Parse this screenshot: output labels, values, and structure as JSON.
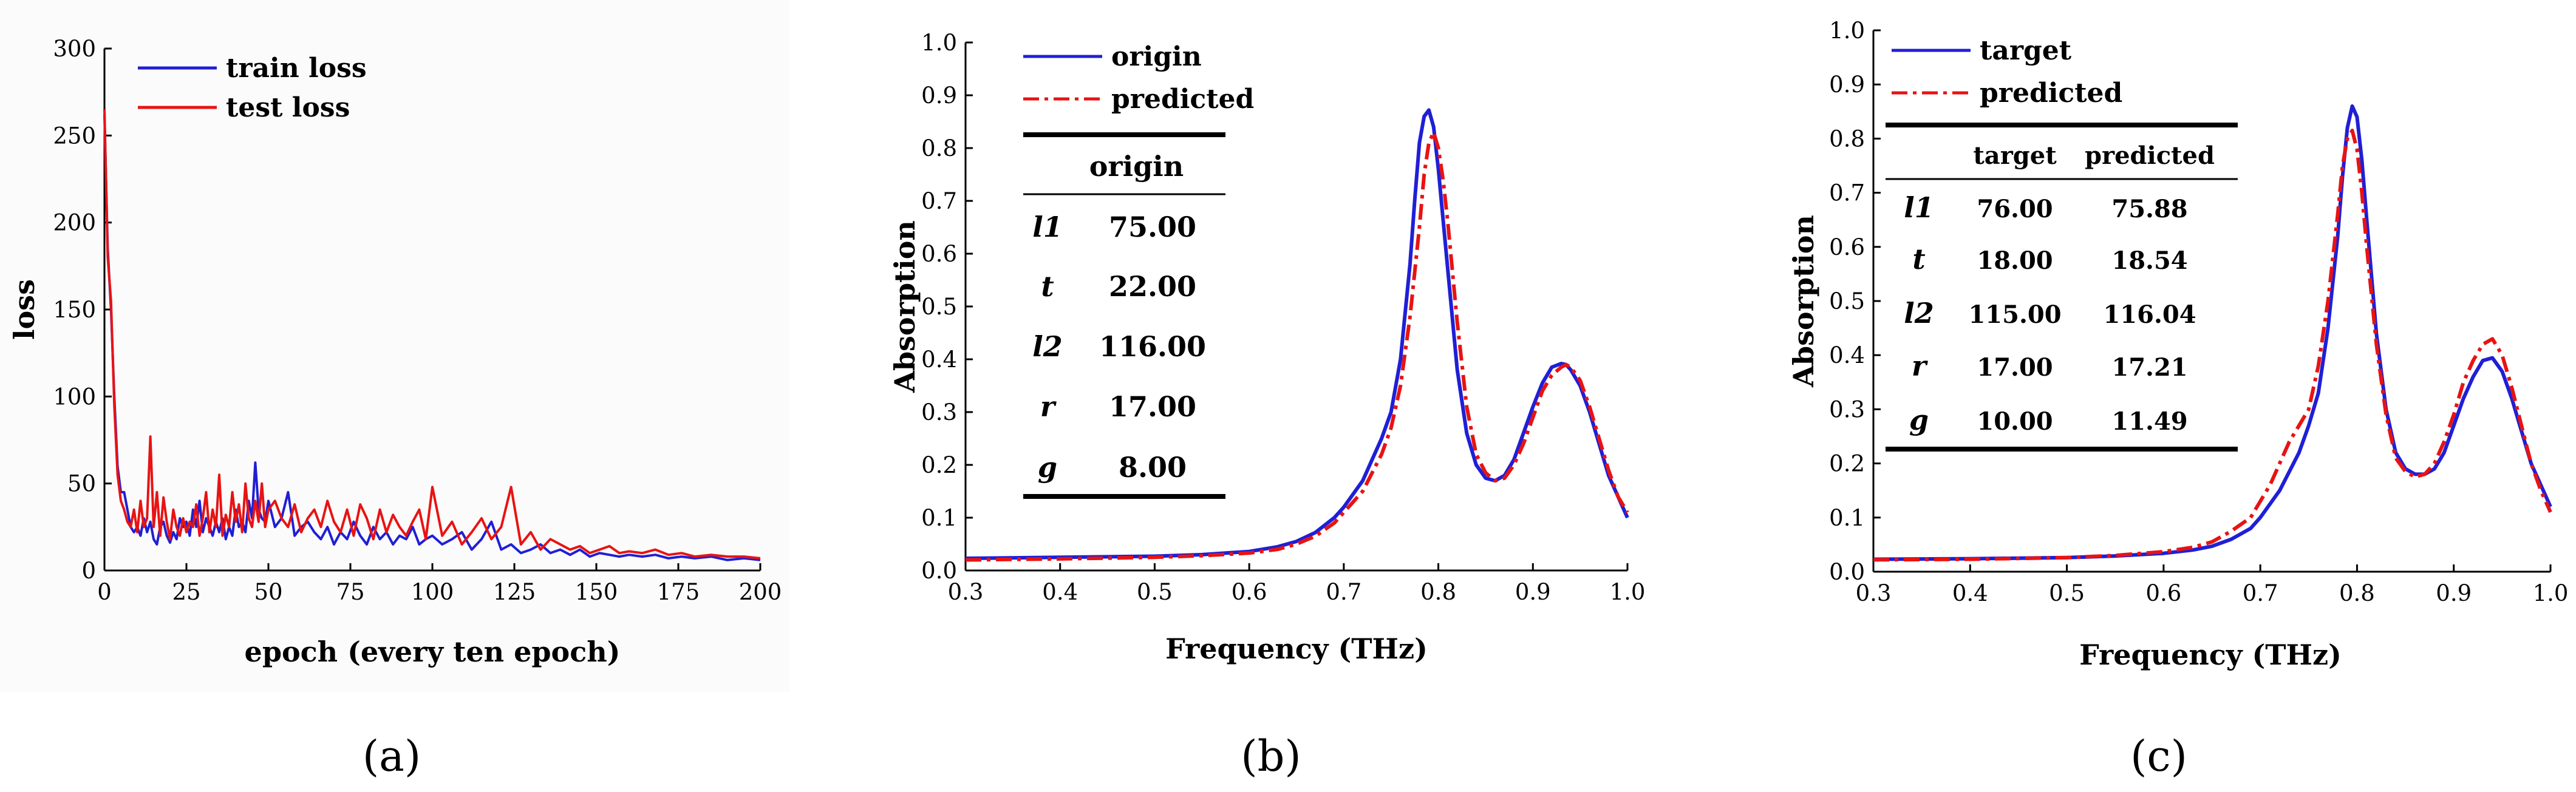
{
  "chart_data": [
    {
      "id": "a",
      "type": "line",
      "xlabel": "epoch (every ten epoch)",
      "ylabel": "loss",
      "xlim": [
        0,
        200
      ],
      "ylim": [
        0,
        300
      ],
      "xticks": [
        0,
        25,
        50,
        75,
        100,
        125,
        150,
        175,
        200
      ],
      "yticks": [
        0,
        50,
        100,
        150,
        200,
        250,
        300
      ],
      "xtick_labels": [
        "0",
        "25",
        "50",
        "75",
        "100",
        "125",
        "150",
        "175",
        "200"
      ],
      "ytick_labels": [
        "0",
        "50",
        "100",
        "150",
        "200",
        "250",
        "300"
      ],
      "legend_position": "top-left",
      "series": [
        {
          "name": "train loss",
          "color": "#1f1fd6",
          "x": [
            0,
            1,
            2,
            3,
            4,
            5,
            6,
            7,
            8,
            9,
            10,
            11,
            12,
            13,
            14,
            15,
            16,
            17,
            18,
            19,
            20,
            21,
            22,
            23,
            24,
            25,
            26,
            27,
            28,
            29,
            30,
            31,
            32,
            33,
            34,
            35,
            36,
            37,
            38,
            39,
            40,
            41,
            42,
            43,
            44,
            45,
            46,
            47,
            48,
            49,
            50,
            52,
            54,
            56,
            58,
            60,
            62,
            64,
            66,
            68,
            70,
            72,
            74,
            76,
            78,
            80,
            82,
            84,
            86,
            88,
            90,
            92,
            94,
            96,
            98,
            100,
            103,
            106,
            109,
            112,
            115,
            118,
            121,
            124,
            127,
            130,
            133,
            136,
            139,
            142,
            145,
            148,
            151,
            154,
            157,
            160,
            164,
            168,
            172,
            176,
            180,
            185,
            190,
            195,
            200
          ],
          "y": [
            262,
            185,
            150,
            100,
            60,
            45,
            45,
            35,
            25,
            22,
            25,
            20,
            30,
            22,
            28,
            18,
            15,
            25,
            28,
            20,
            16,
            22,
            18,
            30,
            25,
            28,
            20,
            35,
            25,
            40,
            22,
            30,
            25,
            20,
            28,
            22,
            30,
            18,
            25,
            20,
            35,
            25,
            28,
            22,
            40,
            30,
            62,
            35,
            30,
            28,
            40,
            25,
            30,
            45,
            20,
            25,
            28,
            22,
            18,
            25,
            15,
            22,
            18,
            28,
            20,
            15,
            25,
            18,
            22,
            15,
            20,
            18,
            25,
            15,
            18,
            20,
            15,
            18,
            22,
            12,
            18,
            28,
            12,
            15,
            10,
            12,
            15,
            10,
            12,
            9,
            12,
            8,
            10,
            9,
            8,
            9,
            8,
            9,
            7,
            8,
            7,
            8,
            6,
            7,
            6
          ]
        },
        {
          "name": "test loss",
          "color": "#e81313",
          "x": [
            0,
            1,
            2,
            3,
            4,
            5,
            6,
            7,
            8,
            9,
            10,
            11,
            12,
            13,
            14,
            15,
            16,
            17,
            18,
            19,
            20,
            21,
            22,
            23,
            24,
            25,
            26,
            27,
            28,
            29,
            30,
            31,
            32,
            33,
            34,
            35,
            36,
            37,
            38,
            39,
            40,
            41,
            42,
            43,
            44,
            45,
            46,
            47,
            48,
            49,
            50,
            52,
            54,
            56,
            58,
            60,
            62,
            64,
            66,
            68,
            70,
            72,
            74,
            76,
            78,
            80,
            82,
            84,
            86,
            88,
            90,
            92,
            94,
            96,
            98,
            100,
            103,
            106,
            109,
            112,
            115,
            118,
            121,
            124,
            127,
            130,
            133,
            136,
            139,
            142,
            145,
            148,
            151,
            154,
            157,
            160,
            164,
            168,
            172,
            176,
            180,
            185,
            190,
            195,
            200
          ],
          "y": [
            265,
            180,
            155,
            95,
            55,
            40,
            35,
            28,
            25,
            35,
            22,
            40,
            25,
            30,
            77,
            25,
            45,
            20,
            42,
            28,
            18,
            35,
            25,
            20,
            30,
            22,
            28,
            25,
            38,
            20,
            30,
            45,
            22,
            35,
            25,
            55,
            20,
            32,
            25,
            45,
            28,
            38,
            22,
            50,
            30,
            25,
            40,
            28,
            50,
            25,
            35,
            40,
            30,
            25,
            38,
            22,
            30,
            35,
            25,
            40,
            28,
            22,
            35,
            20,
            38,
            30,
            18,
            35,
            22,
            32,
            25,
            20,
            28,
            35,
            18,
            48,
            20,
            28,
            15,
            22,
            30,
            18,
            25,
            48,
            15,
            22,
            12,
            18,
            15,
            12,
            14,
            10,
            12,
            14,
            10,
            11,
            10,
            12,
            9,
            10,
            8,
            9,
            8,
            8,
            7
          ]
        }
      ]
    },
    {
      "id": "b",
      "type": "line",
      "xlabel": "Frequency (THz)",
      "ylabel": "Absorption",
      "xlim": [
        0.3,
        1.0
      ],
      "ylim": [
        0.0,
        1.0
      ],
      "xticks": [
        0.3,
        0.4,
        0.5,
        0.6,
        0.7,
        0.8,
        0.9,
        1.0
      ],
      "yticks": [
        0.0,
        0.1,
        0.2,
        0.3,
        0.4,
        0.5,
        0.6,
        0.7,
        0.8,
        0.9,
        1.0
      ],
      "xtick_labels": [
        "0.3",
        "0.4",
        "0.5",
        "0.6",
        "0.7",
        "0.8",
        "0.9",
        "1.0"
      ],
      "ytick_labels": [
        "0.0",
        "0.1",
        "0.2",
        "0.3",
        "0.4",
        "0.5",
        "0.6",
        "0.7",
        "0.8",
        "0.9",
        "1.0"
      ],
      "legend_position": "top-left",
      "series": [
        {
          "name": "origin",
          "color": "#1f1fd6",
          "style": "solid",
          "x": [
            0.3,
            0.4,
            0.5,
            0.55,
            0.6,
            0.63,
            0.65,
            0.67,
            0.69,
            0.7,
            0.72,
            0.74,
            0.75,
            0.76,
            0.77,
            0.775,
            0.78,
            0.785,
            0.79,
            0.795,
            0.8,
            0.81,
            0.82,
            0.83,
            0.84,
            0.85,
            0.86,
            0.87,
            0.88,
            0.89,
            0.9,
            0.91,
            0.92,
            0.93,
            0.935,
            0.94,
            0.95,
            0.96,
            0.97,
            0.98,
            0.99,
            1.0
          ],
          "y": [
            0.023,
            0.025,
            0.027,
            0.03,
            0.036,
            0.045,
            0.055,
            0.072,
            0.1,
            0.12,
            0.17,
            0.25,
            0.3,
            0.4,
            0.58,
            0.7,
            0.81,
            0.86,
            0.872,
            0.84,
            0.76,
            0.57,
            0.38,
            0.26,
            0.2,
            0.175,
            0.17,
            0.18,
            0.21,
            0.26,
            0.31,
            0.355,
            0.385,
            0.392,
            0.39,
            0.38,
            0.35,
            0.3,
            0.24,
            0.18,
            0.14,
            0.1
          ]
        },
        {
          "name": "predicted",
          "color": "#e81313",
          "style": "dashdot",
          "x": [
            0.3,
            0.4,
            0.5,
            0.55,
            0.6,
            0.63,
            0.65,
            0.67,
            0.69,
            0.7,
            0.72,
            0.74,
            0.75,
            0.76,
            0.77,
            0.78,
            0.785,
            0.79,
            0.795,
            0.8,
            0.805,
            0.81,
            0.82,
            0.83,
            0.84,
            0.85,
            0.86,
            0.87,
            0.88,
            0.89,
            0.9,
            0.91,
            0.92,
            0.93,
            0.935,
            0.94,
            0.95,
            0.96,
            0.97,
            0.98,
            0.99,
            1.0
          ],
          "y": [
            0.02,
            0.022,
            0.025,
            0.028,
            0.033,
            0.04,
            0.05,
            0.065,
            0.09,
            0.11,
            0.15,
            0.22,
            0.27,
            0.35,
            0.48,
            0.65,
            0.75,
            0.81,
            0.83,
            0.8,
            0.74,
            0.66,
            0.47,
            0.31,
            0.22,
            0.185,
            0.17,
            0.175,
            0.2,
            0.24,
            0.29,
            0.34,
            0.37,
            0.385,
            0.39,
            0.385,
            0.36,
            0.31,
            0.25,
            0.19,
            0.14,
            0.11
          ]
        }
      ],
      "table": {
        "header": "origin",
        "rows": [
          {
            "param": "l1",
            "value": "75.00"
          },
          {
            "param": "t",
            "value": "22.00"
          },
          {
            "param": "l2",
            "value": "116.00"
          },
          {
            "param": "r",
            "value": "17.00"
          },
          {
            "param": "g",
            "value": "8.00"
          }
        ]
      }
    },
    {
      "id": "c",
      "type": "line",
      "xlabel": "Frequency (THz)",
      "ylabel": "Absorption",
      "xlim": [
        0.3,
        1.0
      ],
      "ylim": [
        0.0,
        1.0
      ],
      "xticks": [
        0.3,
        0.4,
        0.5,
        0.6,
        0.7,
        0.8,
        0.9,
        1.0
      ],
      "yticks": [
        0.0,
        0.1,
        0.2,
        0.3,
        0.4,
        0.5,
        0.6,
        0.7,
        0.8,
        0.9,
        1.0
      ],
      "xtick_labels": [
        "0.3",
        "0.4",
        "0.5",
        "0.6",
        "0.7",
        "0.8",
        "0.9",
        "1.0"
      ],
      "ytick_labels": [
        "0.0",
        "0.1",
        "0.2",
        "0.3",
        "0.4",
        "0.5",
        "0.6",
        "0.7",
        "0.8",
        "0.9",
        "1.0"
      ],
      "legend_position": "top-left",
      "series": [
        {
          "name": "target",
          "color": "#1f1fd6",
          "style": "solid",
          "x": [
            0.3,
            0.4,
            0.5,
            0.55,
            0.6,
            0.63,
            0.65,
            0.67,
            0.69,
            0.7,
            0.72,
            0.74,
            0.75,
            0.76,
            0.77,
            0.78,
            0.785,
            0.79,
            0.795,
            0.8,
            0.805,
            0.81,
            0.82,
            0.83,
            0.84,
            0.85,
            0.86,
            0.87,
            0.88,
            0.89,
            0.9,
            0.91,
            0.92,
            0.93,
            0.94,
            0.95,
            0.96,
            0.97,
            0.98,
            0.99,
            1.0
          ],
          "y": [
            0.023,
            0.024,
            0.026,
            0.029,
            0.034,
            0.04,
            0.047,
            0.06,
            0.08,
            0.1,
            0.15,
            0.22,
            0.27,
            0.33,
            0.45,
            0.62,
            0.73,
            0.82,
            0.86,
            0.84,
            0.76,
            0.65,
            0.44,
            0.3,
            0.22,
            0.19,
            0.18,
            0.18,
            0.19,
            0.22,
            0.27,
            0.32,
            0.36,
            0.39,
            0.395,
            0.37,
            0.32,
            0.26,
            0.2,
            0.16,
            0.12
          ]
        },
        {
          "name": "predicted",
          "color": "#e81313",
          "style": "dashdot",
          "x": [
            0.3,
            0.4,
            0.5,
            0.55,
            0.6,
            0.63,
            0.65,
            0.67,
            0.69,
            0.7,
            0.71,
            0.72,
            0.73,
            0.74,
            0.75,
            0.76,
            0.77,
            0.78,
            0.785,
            0.79,
            0.795,
            0.8,
            0.805,
            0.81,
            0.82,
            0.83,
            0.84,
            0.85,
            0.86,
            0.87,
            0.88,
            0.89,
            0.9,
            0.91,
            0.92,
            0.93,
            0.94,
            0.95,
            0.96,
            0.97,
            0.98,
            0.99,
            1.0
          ],
          "y": [
            0.022,
            0.023,
            0.026,
            0.03,
            0.037,
            0.045,
            0.055,
            0.075,
            0.1,
            0.13,
            0.16,
            0.2,
            0.24,
            0.27,
            0.3,
            0.38,
            0.5,
            0.66,
            0.75,
            0.8,
            0.815,
            0.78,
            0.7,
            0.6,
            0.42,
            0.29,
            0.21,
            0.185,
            0.175,
            0.18,
            0.2,
            0.24,
            0.29,
            0.35,
            0.39,
            0.42,
            0.43,
            0.4,
            0.34,
            0.27,
            0.2,
            0.15,
            0.11
          ]
        }
      ],
      "table": {
        "headers": [
          "target",
          "predicted"
        ],
        "rows": [
          {
            "param": "l1",
            "target": "76.00",
            "predicted": "75.88"
          },
          {
            "param": "t",
            "target": "18.00",
            "predicted": "18.54"
          },
          {
            "param": "l2",
            "target": "115.00",
            "predicted": "116.04"
          },
          {
            "param": "r",
            "target": "17.00",
            "predicted": "17.21"
          },
          {
            "param": "g",
            "target": "10.00",
            "predicted": "11.49"
          }
        ]
      }
    }
  ],
  "subfigure_labels": [
    "(a)",
    "(b)",
    "(c)"
  ]
}
